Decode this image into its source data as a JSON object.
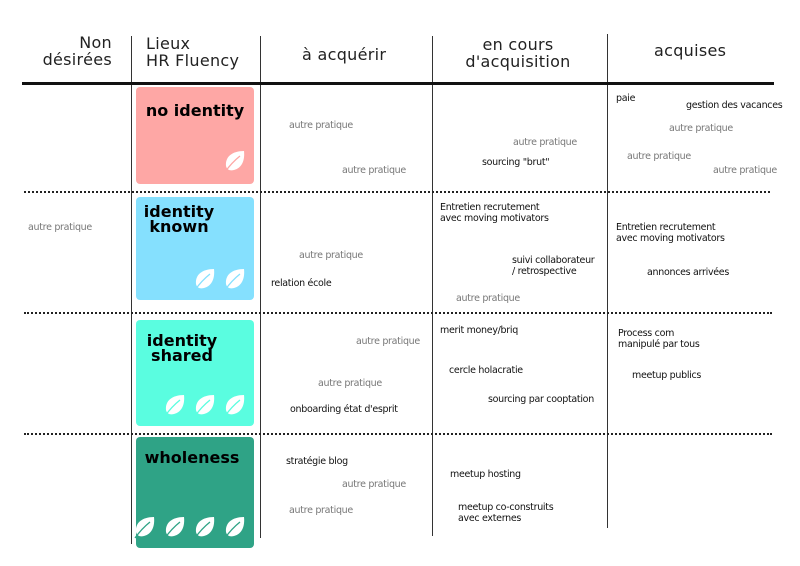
{
  "headers": {
    "non_desirees": [
      "Non",
      "désirées"
    ],
    "lieux": [
      "Lieux",
      "HR Fluency"
    ],
    "a_acquerir": "à acquérir",
    "en_cours": [
      "en cours",
      "d'acquisition"
    ],
    "acquises": "acquises"
  },
  "levels": [
    {
      "title": "no identity",
      "color": "#fea7a5",
      "leaves": 1
    },
    {
      "title": "identity\nknown",
      "color": "#85e0fe",
      "leaves": 2
    },
    {
      "title": "identity\nshared",
      "color": "#5afde0",
      "leaves": 3
    },
    {
      "title": "wholeness",
      "color": "#2fa386",
      "leaves": 4
    }
  ],
  "items": {
    "autre": "autre pratique",
    "paie": "paie",
    "gestion_vacances": "gestion des vacances",
    "sourcing_brut": "sourcing \"brut\"",
    "entretien_1": "Entretien recrutement",
    "entretien_2": "avec moving motivators",
    "suivi_1": "suivi collaborateur",
    "suivi_2": "/ retrospective",
    "relation_ecole": "relation école",
    "annonces": "annonces arrivées",
    "merit": "merit money/briq",
    "cercle": "cercle holacratie",
    "sourcing_coopt": "sourcing par cooptation",
    "onboarding": "onboarding état d'esprit",
    "process_1": "Process com",
    "process_2": "manipulé par tous",
    "meetup_publics": "meetup publics",
    "strategie_blog": "stratégie blog",
    "meetup_hosting": "meetup hosting",
    "meetup_co_1": "meetup co-construits",
    "meetup_co_2": "avec externes"
  }
}
